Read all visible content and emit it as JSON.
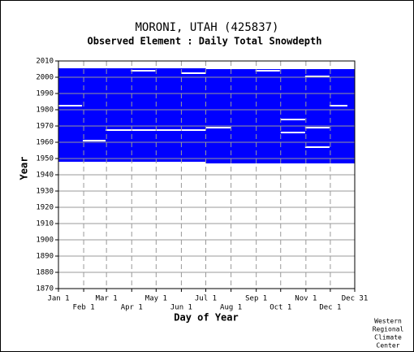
{
  "chart_data": {
    "type": "coverage",
    "title": "MORONI, UTAH   (425837)",
    "subtitle": "Observed Element : Daily Total Snowdepth",
    "x_label": "Day of Year",
    "y_label": "Year",
    "credit": [
      "Western",
      "Regional",
      "Climate",
      "Center"
    ],
    "color": "#0000ff",
    "gap_color": "#ffffff",
    "xlim": [
      1,
      365
    ],
    "ylim": [
      1870,
      2010
    ],
    "xticks": [
      {
        "value": 1,
        "label": "Jan 1"
      },
      {
        "value": 32,
        "label": "Feb 1"
      },
      {
        "value": 60,
        "label": "Mar 1"
      },
      {
        "value": 91,
        "label": "Apr 1"
      },
      {
        "value": 121,
        "label": "May 1"
      },
      {
        "value": 152,
        "label": "Jun 1"
      },
      {
        "value": 182,
        "label": "Jul 1"
      },
      {
        "value": 213,
        "label": "Aug 1"
      },
      {
        "value": 244,
        "label": "Sep 1"
      },
      {
        "value": 274,
        "label": "Oct 1"
      },
      {
        "value": 305,
        "label": "Nov 1"
      },
      {
        "value": 335,
        "label": "Dec 1"
      },
      {
        "value": 365,
        "label": "Dec 31"
      }
    ],
    "yticks": [
      1870,
      1880,
      1890,
      1900,
      1910,
      1920,
      1930,
      1940,
      1950,
      1960,
      1970,
      1980,
      1990,
      2000,
      2010
    ],
    "grid": true,
    "blocks": [
      {
        "day_start": 1,
        "day_end": 182,
        "year_start": 1948,
        "year_end": 2005.5
      },
      {
        "day_start": 182,
        "day_end": 365,
        "year_start": 1947,
        "year_end": 2005.5
      }
    ],
    "gaps": [
      {
        "day_start": 1,
        "day_end": 30,
        "year": 1982.5
      },
      {
        "day_start": 152,
        "day_end": 182,
        "year": 2002.5
      },
      {
        "day_start": 59,
        "day_end": 182,
        "year": 1967.5
      },
      {
        "day_start": 182,
        "day_end": 213,
        "year": 1969
      },
      {
        "day_start": 31,
        "day_end": 59,
        "year": 1961
      },
      {
        "day_start": 274,
        "day_end": 304,
        "year": 1974
      },
      {
        "day_start": 274,
        "day_end": 304,
        "year": 1966
      },
      {
        "day_start": 304,
        "day_end": 334,
        "year": 1969
      },
      {
        "day_start": 304,
        "day_end": 334,
        "year": 1957
      },
      {
        "day_start": 304,
        "day_end": 334,
        "year": 2000.5
      },
      {
        "day_start": 334,
        "day_end": 356,
        "year": 1982.5
      },
      {
        "day_start": 90,
        "day_end": 120,
        "year": 2004
      },
      {
        "day_start": 243,
        "day_end": 273,
        "year": 2004
      },
      {
        "day_start": 182,
        "day_end": 365,
        "year": 2005.5
      }
    ]
  }
}
